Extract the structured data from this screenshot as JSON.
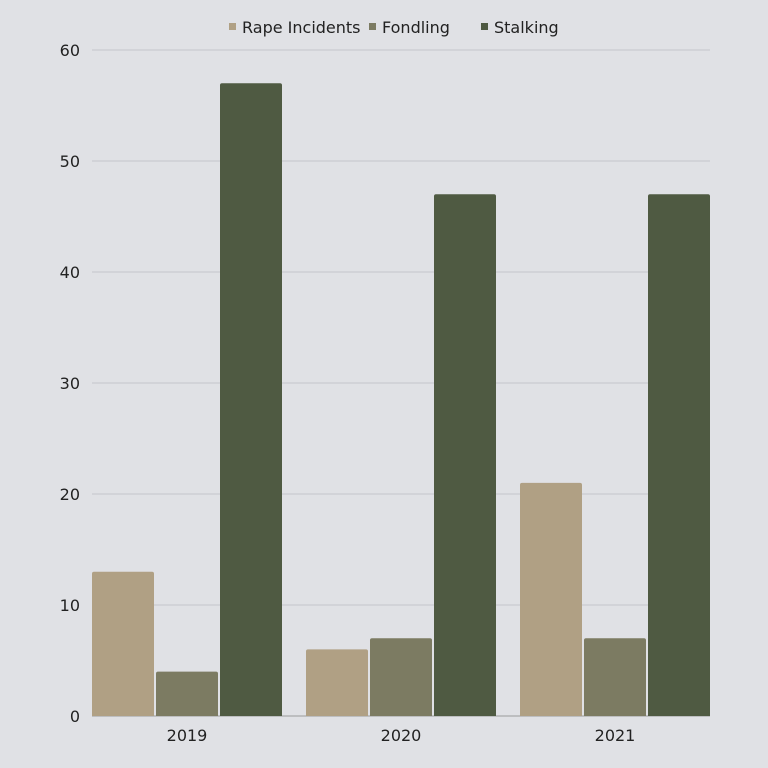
{
  "chart_data": {
    "type": "bar",
    "categories": [
      "2019",
      "2020",
      "2021"
    ],
    "series": [
      {
        "name": "Rape Incidents",
        "values": [
          13,
          6,
          21
        ],
        "color": "#b0a084"
      },
      {
        "name": "Fondling",
        "values": [
          4,
          7,
          7
        ],
        "color": "#7c7b62"
      },
      {
        "name": "Stalking",
        "values": [
          57,
          47,
          47
        ],
        "color": "#4f5a42"
      }
    ],
    "ylim": [
      0,
      60
    ],
    "yticks": [
      0,
      10,
      20,
      30,
      40,
      50,
      60
    ],
    "grid": true,
    "legend": "top-center",
    "title": "",
    "xlabel": "",
    "ylabel": ""
  }
}
